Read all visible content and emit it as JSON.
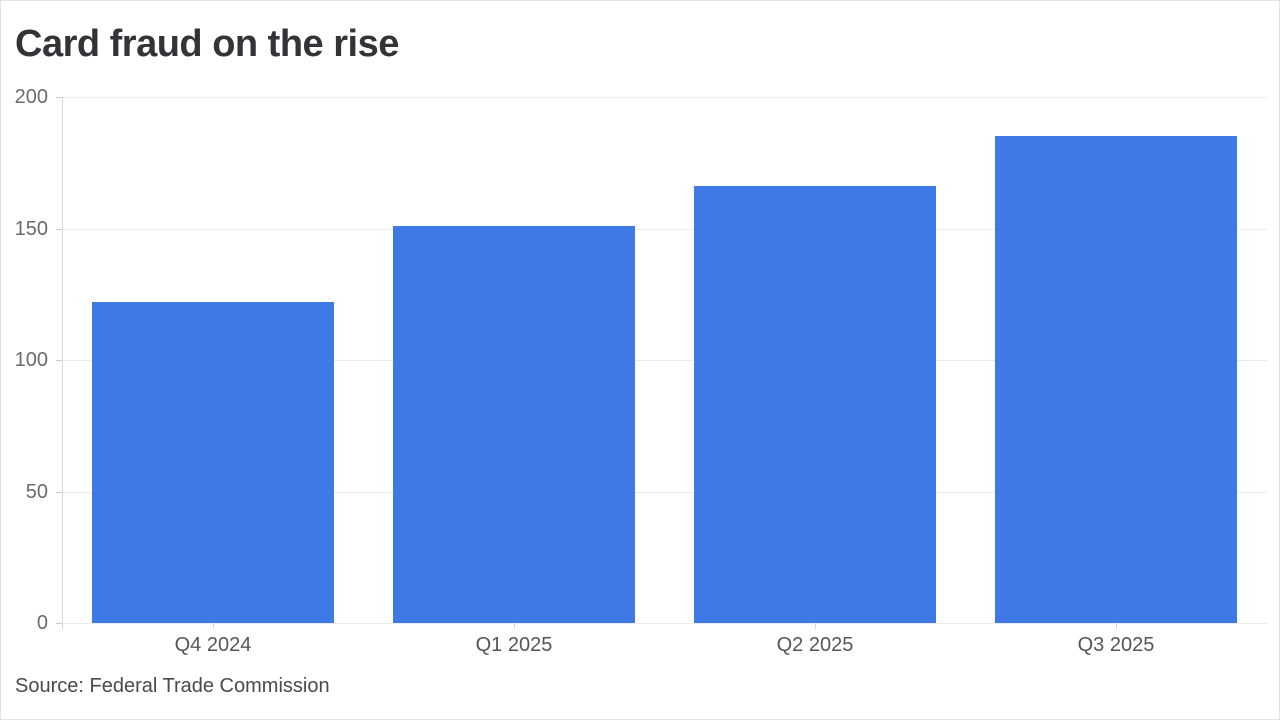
{
  "page": {
    "title": "Card fraud on the rise",
    "source_note": "Source: Federal Trade Commission"
  },
  "colors": {
    "bar": "#3e79e5",
    "gridline": "#ececec",
    "axis": "#d6d6d6",
    "tick": "#c9c9c9",
    "title_text": "#333338",
    "y_label_text": "#6b6b6b",
    "x_label_text": "#565656",
    "source_text": "#4a4a4a",
    "background": "#ffffff",
    "card_border": "#e2e2e2"
  },
  "chart_data": {
    "type": "bar",
    "title": "Card fraud on the rise",
    "categories": [
      "Q4 2024",
      "Q1 2025",
      "Q2 2025",
      "Q3 2025"
    ],
    "values": [
      122,
      151,
      166,
      185
    ],
    "xlabel": "",
    "ylabel": "",
    "ylim": [
      0,
      200
    ],
    "yticks": [
      0,
      50,
      100,
      150,
      200
    ],
    "grid": true,
    "legend": false,
    "bar_color": "#3e79e5",
    "source": "Source: Federal Trade Commission"
  }
}
